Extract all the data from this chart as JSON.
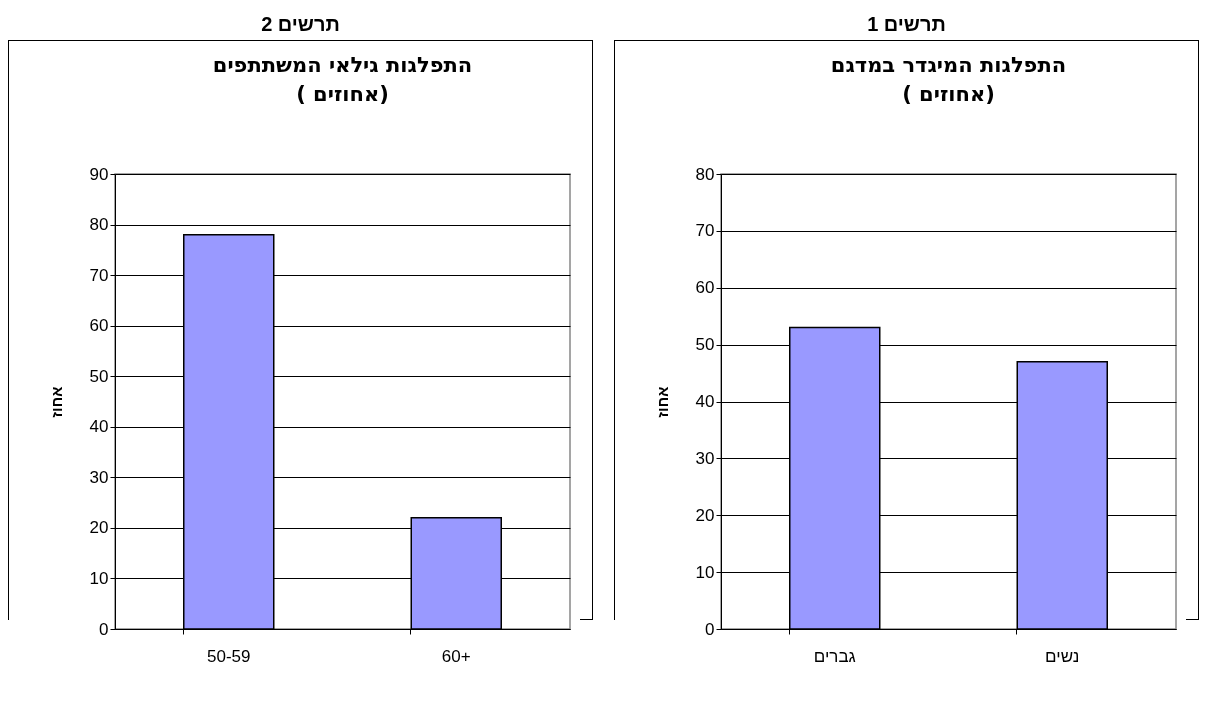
{
  "chart_data": [
    {
      "type": "bar",
      "annotations": [
        "תרשים 1"
      ],
      "title": "התפלגות המיגדר במדגם",
      "subtitle": "( אחוזים)",
      "ylabel": "אחוז",
      "categories": [
        "גברים",
        "נשים"
      ],
      "values": [
        53,
        47
      ],
      "color": "#9999ff",
      "ylim": [
        0,
        80
      ],
      "yticks": [
        0,
        10,
        20,
        30,
        40,
        50,
        60,
        70,
        80
      ],
      "grid": "y"
    },
    {
      "type": "bar",
      "annotations": [
        "תרשים 2"
      ],
      "title": "התפלגות גילאי המשתתפים",
      "subtitle": "( אחוזים)",
      "ylabel": "אחוז",
      "categories": [
        "50-59",
        "60+"
      ],
      "values": [
        78,
        22
      ],
      "color": "#9999ff",
      "ylim": [
        0,
        90
      ],
      "yticks": [
        0,
        10,
        20,
        30,
        40,
        50,
        60,
        70,
        80,
        90
      ],
      "grid": "y"
    }
  ]
}
